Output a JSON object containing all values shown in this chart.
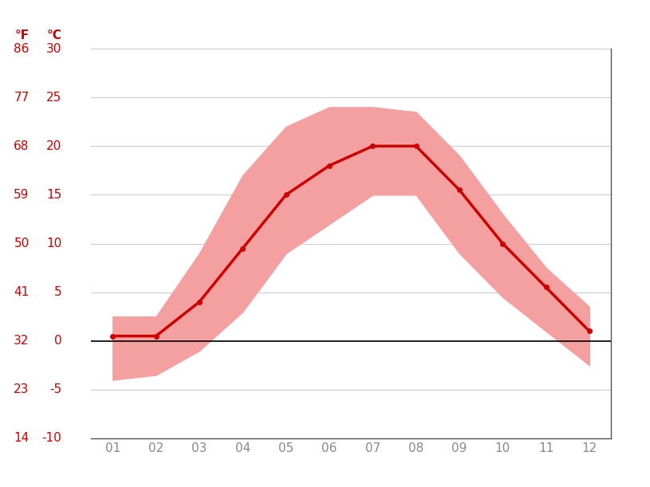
{
  "months": [
    1,
    2,
    3,
    4,
    5,
    6,
    7,
    8,
    9,
    10,
    11,
    12
  ],
  "month_labels": [
    "01",
    "02",
    "03",
    "04",
    "05",
    "06",
    "07",
    "08",
    "09",
    "10",
    "11",
    "12"
  ],
  "temp_mean": [
    0.5,
    0.5,
    4.0,
    9.5,
    15.0,
    18.0,
    20.0,
    20.0,
    15.5,
    10.0,
    5.5,
    1.0
  ],
  "temp_max": [
    2.5,
    2.5,
    9.0,
    17.0,
    22.0,
    24.0,
    24.0,
    23.5,
    19.0,
    13.0,
    7.5,
    3.5
  ],
  "temp_min": [
    -4.0,
    -3.5,
    -1.0,
    3.0,
    9.0,
    12.0,
    15.0,
    15.0,
    9.0,
    4.5,
    1.0,
    -2.5
  ],
  "celsius_ticks": [
    -10,
    -5,
    0,
    5,
    10,
    15,
    20,
    25,
    30
  ],
  "fahrenheit_ticks": [
    14,
    23,
    32,
    41,
    50,
    59,
    68,
    77,
    86
  ],
  "y_min": -10,
  "y_max": 30,
  "line_color": "#cc0000",
  "band_color": "#f5a0a0",
  "zero_line_color": "#000000",
  "grid_color": "#cccccc",
  "axis_label_color": "#cc0000",
  "tick_color": "#888888",
  "background_color": "#ffffff",
  "label_fontsize": 11,
  "unit_fontsize": 11
}
